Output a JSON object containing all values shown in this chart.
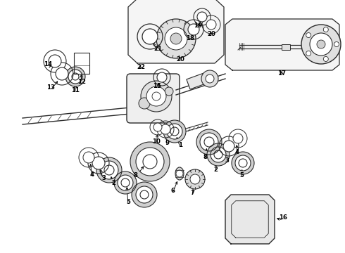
{
  "bg_color": "#ffffff",
  "lc": "#2a2a2a",
  "tc": "#000000",
  "fig_width": 4.9,
  "fig_height": 3.6,
  "dpi": 100
}
